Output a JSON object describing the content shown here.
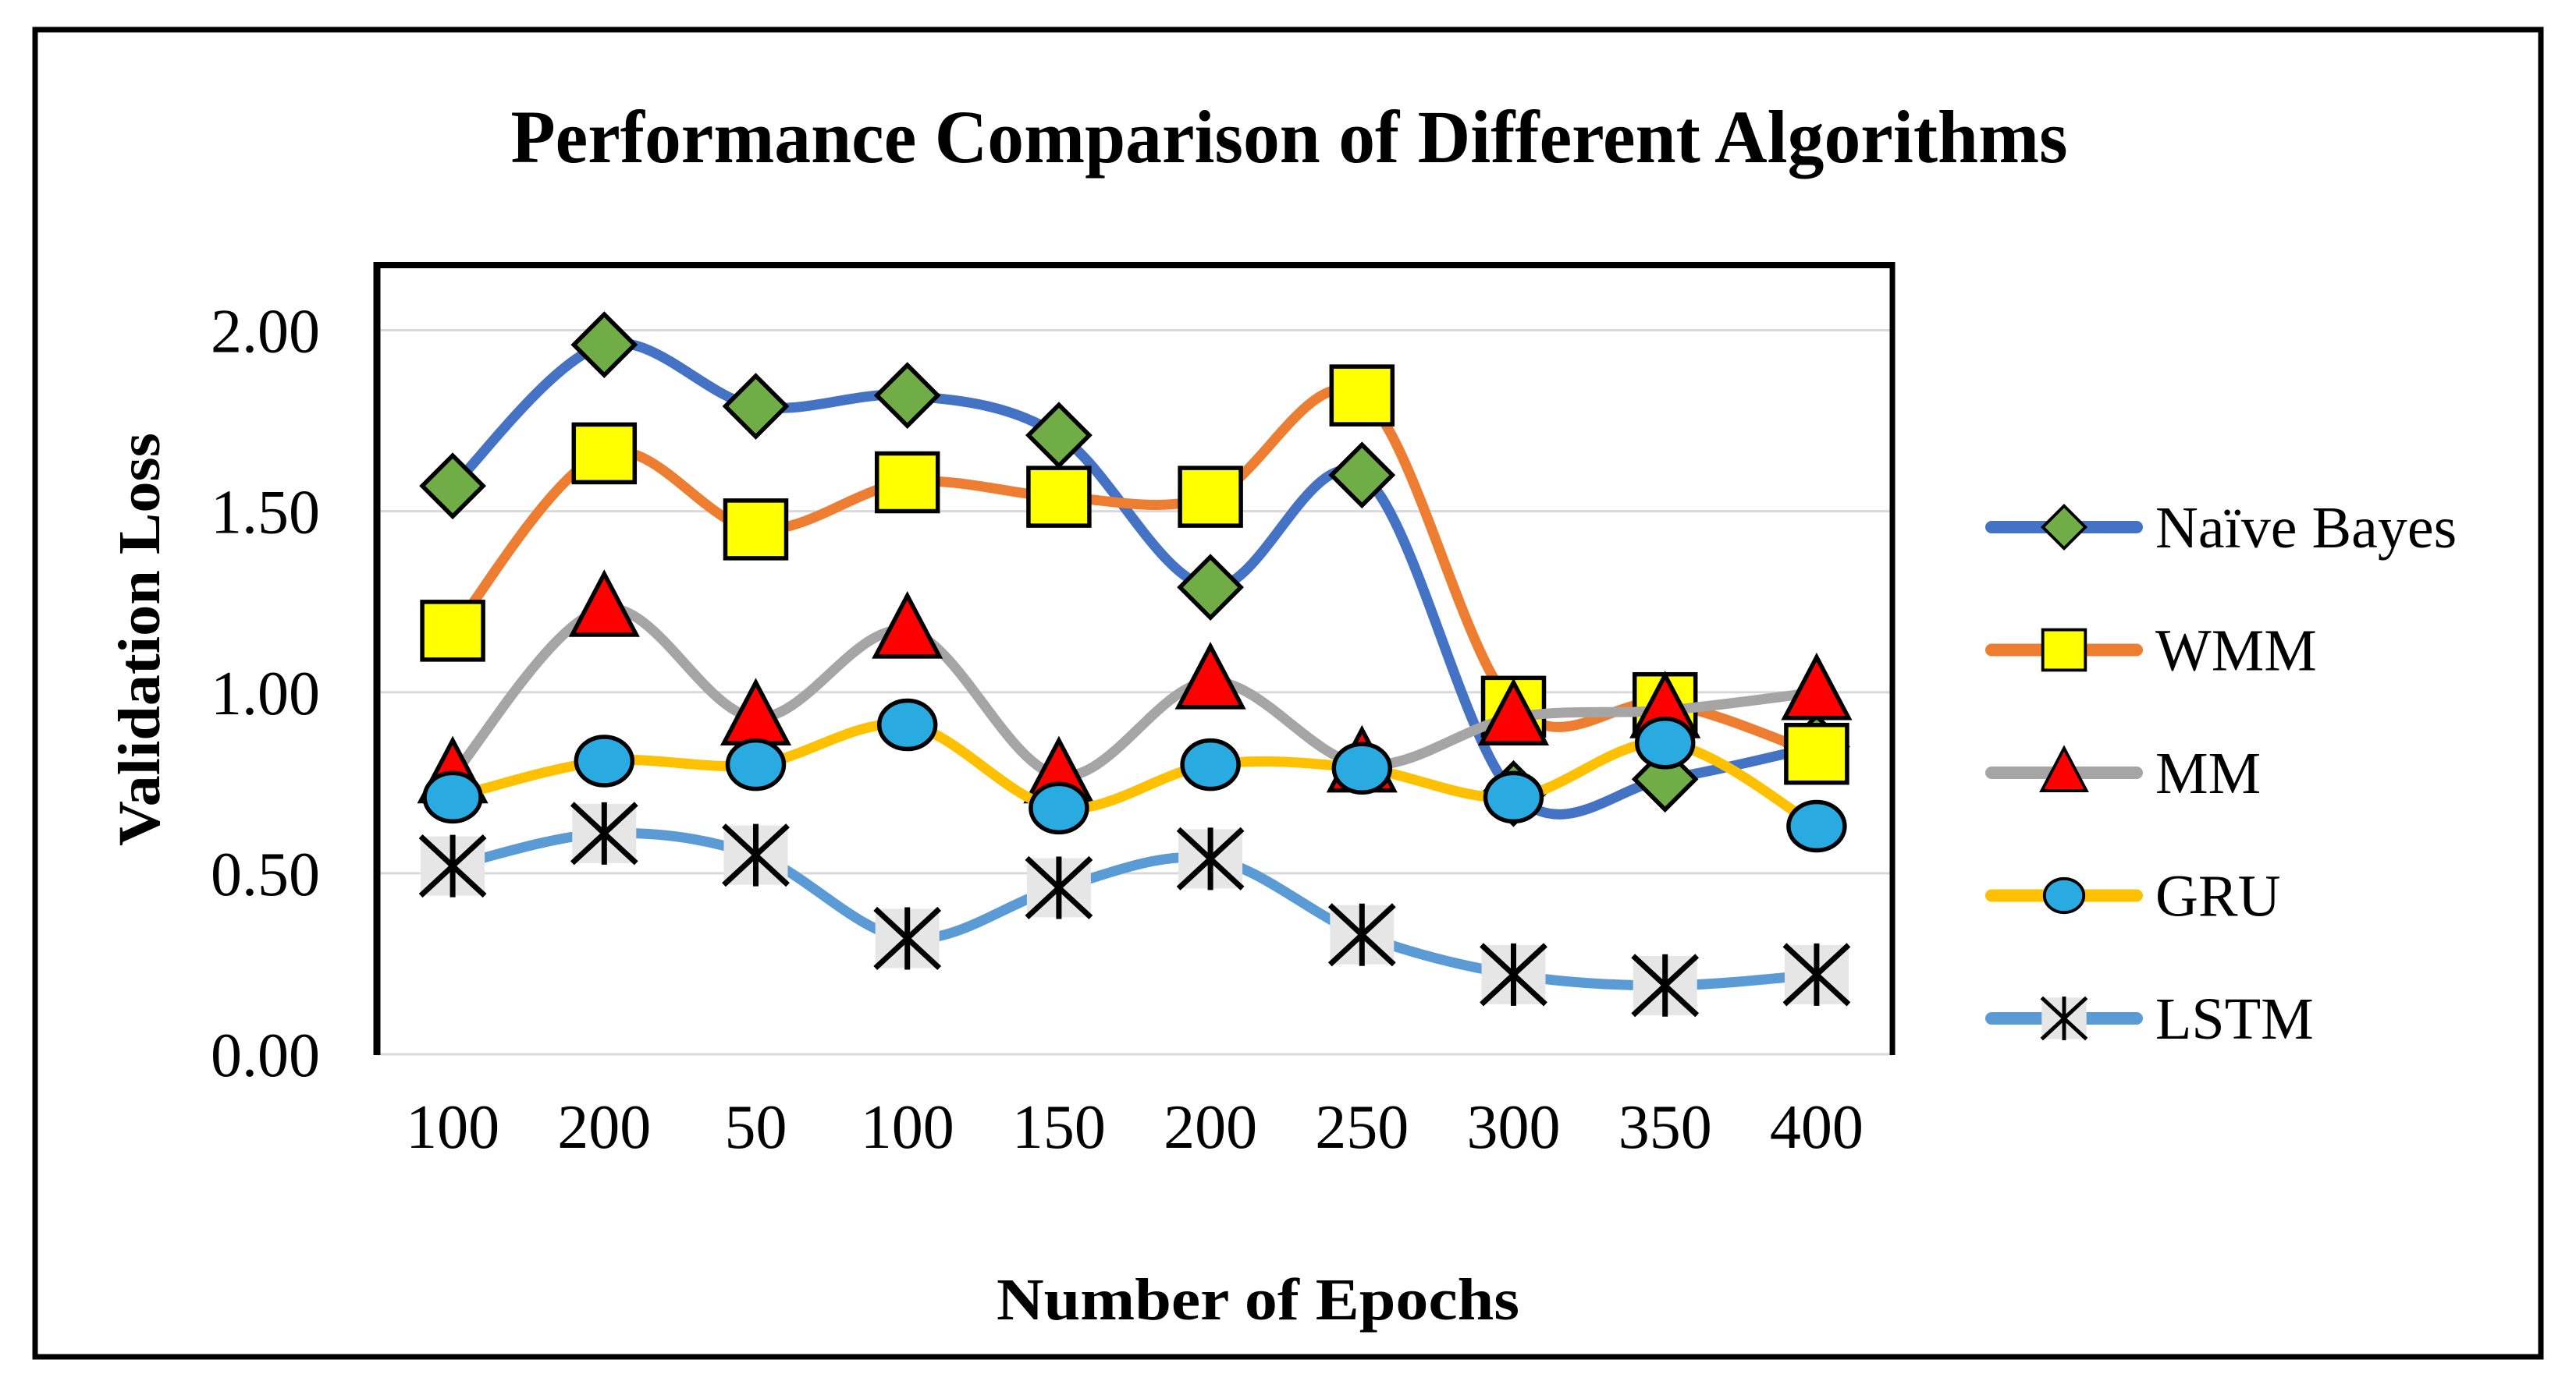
{
  "chart_data": {
    "type": "line",
    "title": "Performance Comparison of Different Algorithms",
    "xlabel": "Number of Epochs",
    "ylabel": "Validation Loss",
    "categories": [
      "100",
      "200",
      "50",
      "100",
      "150",
      "200",
      "250",
      "300",
      "350",
      "400"
    ],
    "y_ticks": [
      "2.00",
      "1.50",
      "1.00",
      "0.50",
      "0.00"
    ],
    "ylim": [
      0,
      2.18
    ],
    "grid": true,
    "legend_position": "right",
    "line_style": "smoothed",
    "colors": {
      "gridline": "#d9d9d9",
      "plot_border": "#000000",
      "figure_border": "#000000",
      "background": "#ffffff"
    },
    "series": [
      {
        "name": "Naïve Bayes",
        "line_color": "#4472C4",
        "marker": {
          "shape": "diamond",
          "fill": "#70AD47",
          "stroke": "#000000"
        },
        "values": [
          1.57,
          1.96,
          1.79,
          1.82,
          1.71,
          1.29,
          1.6,
          0.72,
          0.76,
          0.85
        ]
      },
      {
        "name": "WMM",
        "line_color": "#ED7D31",
        "marker": {
          "shape": "square",
          "fill": "#FFFF00",
          "stroke": "#000000"
        },
        "values": [
          1.17,
          1.66,
          1.45,
          1.58,
          1.54,
          1.54,
          1.82,
          0.96,
          0.97,
          0.83
        ]
      },
      {
        "name": "MM",
        "line_color": "#A5A5A5",
        "marker": {
          "shape": "triangle",
          "fill": "#FF0000",
          "stroke": "#000000"
        },
        "values": [
          0.77,
          1.23,
          0.93,
          1.17,
          0.77,
          1.03,
          0.8,
          0.93,
          0.95,
          1.0
        ]
      },
      {
        "name": "GRU",
        "line_color": "#FFC000",
        "marker": {
          "shape": "circle",
          "fill": "#29ABE2",
          "stroke": "#000000"
        },
        "values": [
          0.71,
          0.81,
          0.8,
          0.91,
          0.68,
          0.8,
          0.79,
          0.71,
          0.86,
          0.63
        ]
      },
      {
        "name": "LSTM",
        "line_color": "#5B9BD5",
        "marker": {
          "shape": "star",
          "fill": "#E7E6E6",
          "stroke": "#000000"
        },
        "values": [
          0.52,
          0.61,
          0.55,
          0.32,
          0.46,
          0.54,
          0.33,
          0.22,
          0.19,
          0.22
        ]
      }
    ]
  }
}
